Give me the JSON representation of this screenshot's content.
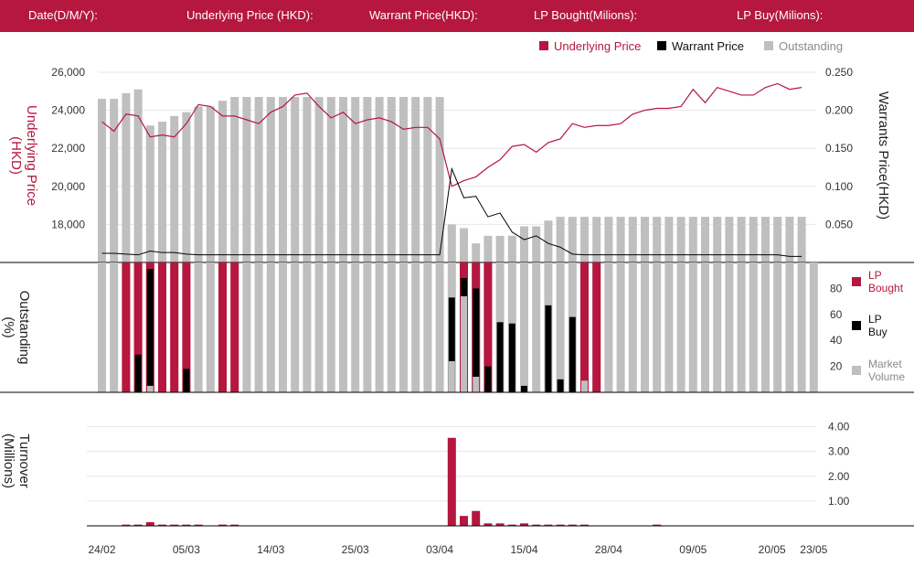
{
  "header": {
    "date_label": "Date(D/M/Y):",
    "underlying_label": "Underlying Price (HKD):",
    "warrant_label": "Warrant  Price(HKD):",
    "lp_bought_label": "LP Bought(Milions):",
    "lp_buy_label": "LP Buy(Milions):"
  },
  "colors": {
    "red": "#b5173f",
    "black": "#000000",
    "gray": "#bfbfbf",
    "grid": "#e6e6e6"
  },
  "chart_data": [
    {
      "type": "line",
      "legend": [
        "Underlying Price",
        "Warrant  Price",
        "Outstanding"
      ],
      "legend_position": "top-right",
      "ylabel_left": "Underlying Price (HKD)",
      "ylabel_right": "Warrants  Price(HKD)",
      "ylim_left": [
        16000,
        26000
      ],
      "yticks_left": [
        "26,000",
        "24,000",
        "22,000",
        "20,000",
        "18,000"
      ],
      "ylim_right": [
        0,
        0.25
      ],
      "yticks_right": [
        "0.250",
        "0.200",
        "0.150",
        "0.100",
        "0.050"
      ],
      "underlying_price": [
        23400,
        22900,
        23800,
        23700,
        22600,
        22700,
        22600,
        23300,
        24300,
        24200,
        23700,
        23700,
        23500,
        23300,
        23900,
        24200,
        24800,
        24900,
        24200,
        23600,
        23900,
        23300,
        23500,
        23600,
        23400,
        23000,
        23100,
        23100,
        22500,
        20000,
        20300,
        20500,
        21000,
        21400,
        22100,
        22200,
        21800,
        22300,
        22500,
        23300,
        23100,
        23200,
        23200,
        23300,
        23800,
        24000,
        24100,
        24100,
        24200,
        25100,
        24400,
        25200,
        25000,
        24800,
        24800,
        25200,
        25400,
        25100,
        25200
      ],
      "warrant_price": [
        0.012,
        0.012,
        0.011,
        0.01,
        0.015,
        0.013,
        0.013,
        0.011,
        0.01,
        0.01,
        0.01,
        0.01,
        0.01,
        0.01,
        0.01,
        0.01,
        0.01,
        0.01,
        0.01,
        0.01,
        0.01,
        0.01,
        0.01,
        0.01,
        0.01,
        0.01,
        0.01,
        0.01,
        0.01,
        0.123,
        0.085,
        0.087,
        0.06,
        0.065,
        0.04,
        0.03,
        0.035,
        0.025,
        0.02,
        0.011,
        0.01,
        0.01,
        0.01,
        0.01,
        0.01,
        0.01,
        0.01,
        0.01,
        0.01,
        0.01,
        0.01,
        0.01,
        0.01,
        0.01,
        0.01,
        0.01,
        0.01,
        0.008,
        0.008
      ],
      "outstanding_ylim": [
        0,
        1
      ],
      "outstanding": [
        0.86,
        0.86,
        0.89,
        0.91,
        0.72,
        0.74,
        0.77,
        0.79,
        0.82,
        0.82,
        0.85,
        0.87,
        0.87,
        0.87,
        0.87,
        0.87,
        0.87,
        0.87,
        0.87,
        0.87,
        0.87,
        0.87,
        0.87,
        0.87,
        0.87,
        0.87,
        0.87,
        0.87,
        0.87,
        0.2,
        0.18,
        0.1,
        0.14,
        0.14,
        0.14,
        0.19,
        0.19,
        0.22,
        0.24,
        0.24,
        0.24,
        0.24,
        0.24,
        0.24,
        0.24,
        0.24,
        0.24,
        0.24,
        0.24,
        0.24,
        0.24,
        0.24,
        0.24,
        0.24,
        0.24,
        0.24,
        0.24,
        0.24,
        0.24,
        0.0
      ]
    },
    {
      "type": "bar",
      "ylabel": "Outstanding (%)",
      "ylim": [
        0,
        100
      ],
      "yticks": [
        "80",
        "60",
        "40",
        "20"
      ],
      "legend": [
        "LP Bought",
        "LP Buy",
        "Market Volume"
      ],
      "legend_position": "right",
      "outstanding": [
        100,
        100,
        100,
        100,
        100,
        100,
        100,
        100,
        100,
        100,
        100,
        100,
        100,
        100,
        100,
        100,
        100,
        100,
        100,
        100,
        100,
        100,
        100,
        100,
        100,
        100,
        100,
        100,
        100,
        100,
        100,
        100,
        100,
        100,
        100,
        100,
        100,
        100,
        100,
        100,
        100,
        100,
        100,
        100,
        100,
        100,
        100,
        100,
        100,
        100,
        100,
        100,
        100,
        100,
        100,
        100,
        100,
        100,
        100,
        100
      ],
      "lp_bought": [
        0,
        0,
        100,
        100,
        100,
        100,
        100,
        100,
        0,
        0,
        100,
        100,
        0,
        0,
        0,
        0,
        0,
        0,
        0,
        0,
        0,
        0,
        0,
        0,
        0,
        0,
        0,
        0,
        0,
        0,
        100,
        100,
        100,
        0,
        0,
        0,
        0,
        0,
        0,
        0,
        100,
        100,
        0,
        0,
        0,
        0,
        0,
        0,
        0,
        0,
        0,
        0,
        0,
        0,
        0,
        0,
        0,
        0,
        0,
        0
      ],
      "lp_buy": [
        0,
        0,
        0,
        29,
        95,
        0,
        0,
        18,
        0,
        0,
        0,
        0,
        0,
        0,
        0,
        0,
        0,
        0,
        0,
        0,
        0,
        0,
        0,
        0,
        0,
        0,
        0,
        0,
        0,
        73,
        88,
        80,
        20,
        54,
        53,
        5,
        0,
        67,
        10,
        58,
        0,
        0,
        0,
        0,
        0,
        0,
        0,
        0,
        0,
        0,
        0,
        0,
        0,
        0,
        0,
        0,
        0,
        0,
        0,
        0
      ],
      "market_volume": [
        0,
        0,
        0,
        0,
        5,
        0,
        0,
        0,
        0,
        0,
        0,
        0,
        0,
        0,
        0,
        0,
        0,
        0,
        0,
        0,
        0,
        0,
        0,
        0,
        0,
        0,
        0,
        0,
        0,
        24,
        74,
        12,
        0,
        0,
        0,
        0,
        0,
        0,
        0,
        0,
        9,
        0,
        0,
        0,
        0,
        0,
        0,
        0,
        0,
        0,
        0,
        0,
        0,
        0,
        0,
        0,
        0,
        0,
        0,
        0
      ]
    },
    {
      "type": "bar",
      "ylabel": "Turnover (Millions)",
      "ylim": [
        0,
        4.5
      ],
      "yticks": [
        "4.00",
        "3.00",
        "2.00",
        "1.00"
      ],
      "values": [
        0,
        0,
        0.05,
        0.05,
        0.15,
        0.05,
        0.05,
        0.05,
        0.05,
        0,
        0.05,
        0.05,
        0,
        0,
        0,
        0,
        0,
        0,
        0,
        0,
        0,
        0,
        0,
        0,
        0,
        0,
        0,
        0,
        0,
        3.55,
        0.4,
        0.6,
        0.1,
        0.1,
        0.05,
        0.1,
        0.05,
        0.05,
        0.05,
        0.05,
        0.05,
        0,
        0,
        0,
        0,
        0,
        0.05,
        0,
        0,
        0,
        0,
        0,
        0,
        0,
        0,
        0,
        0,
        0,
        0,
        0
      ]
    }
  ],
  "x_axis": {
    "tick_labels": [
      "24/02",
      "05/03",
      "14/03",
      "25/03",
      "03/04",
      "15/04",
      "28/04",
      "09/05",
      "20/05",
      "23/05"
    ],
    "tick_indices": [
      0,
      7,
      14,
      21,
      28,
      35,
      42,
      49,
      56,
      59
    ]
  }
}
